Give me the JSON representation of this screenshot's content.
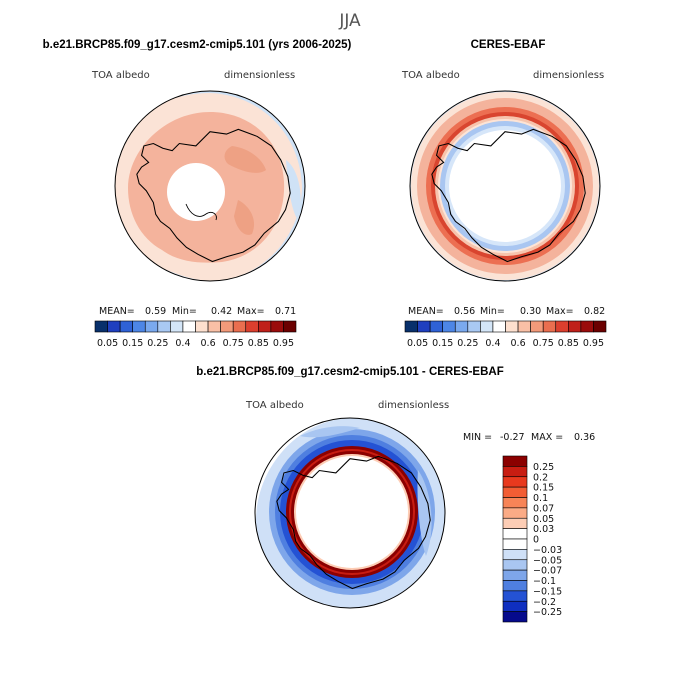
{
  "figure": {
    "season": "JJA",
    "colors": {
      "bluefill": "#cfe2f6",
      "palefill": "#fbe3d6",
      "lightred": "#f3b39d",
      "midred": "#e8674c",
      "darkred": "#a81c1c"
    }
  },
  "chart_data": [
    {
      "type": "heatmap",
      "projection": "south-polar-stereographic",
      "title": "b.e21.BRCP85.f09_g17.cesm2-cmip5.101 (yrs 2006-2025)",
      "variable_label": "TOA albedo",
      "units_label": "dimensionless",
      "stats": {
        "mean_label": "MEAN=",
        "mean": "0.59",
        "min_label": "Min=",
        "min": "0.42",
        "max_label": "Max=",
        "max": "0.71"
      },
      "colorbar": {
        "orientation": "horizontal",
        "colors": [
          "#08306b",
          "#1f3fbf",
          "#2f62d6",
          "#4d86e6",
          "#7aa9ee",
          "#a9c9f3",
          "#d4e6f8",
          "#ffffff",
          "#fde0cf",
          "#f9c0a6",
          "#f39a7a",
          "#ea6e4f",
          "#dc3f2e",
          "#c0201a",
          "#9a0c0c",
          "#6b0000"
        ],
        "tick_labels": [
          "0.05",
          "0.15",
          "0.25",
          "0.4",
          "0.6",
          "0.75",
          "0.85",
          "0.95"
        ]
      }
    },
    {
      "type": "heatmap",
      "projection": "south-polar-stereographic",
      "title": "CERES-EBAF",
      "variable_label": "TOA albedo",
      "units_label": "dimensionless",
      "stats": {
        "mean_label": "MEAN=",
        "mean": "0.56",
        "min_label": "Min=",
        "min": "0.30",
        "max_label": "Max=",
        "max": "0.82"
      },
      "colorbar": {
        "orientation": "horizontal",
        "colors": [
          "#08306b",
          "#1f3fbf",
          "#2f62d6",
          "#4d86e6",
          "#7aa9ee",
          "#a9c9f3",
          "#d4e6f8",
          "#ffffff",
          "#fde0cf",
          "#f9c0a6",
          "#f39a7a",
          "#ea6e4f",
          "#dc3f2e",
          "#c0201a",
          "#9a0c0c",
          "#6b0000"
        ],
        "tick_labels": [
          "0.05",
          "0.15",
          "0.25",
          "0.4",
          "0.6",
          "0.75",
          "0.85",
          "0.95"
        ]
      }
    },
    {
      "type": "heatmap",
      "projection": "south-polar-stereographic",
      "title": "b.e21.BRCP85.f09_g17.cesm2-cmip5.101 - CERES-EBAF",
      "variable_label": "TOA albedo",
      "units_label": "dimensionless",
      "stats": {
        "min_label": "MIN =",
        "min": "-0.27",
        "max_label": "MAX =",
        "max": "0.36"
      },
      "colorbar": {
        "orientation": "vertical",
        "colors": [
          "#8b0000",
          "#c81d12",
          "#e8391e",
          "#f25d34",
          "#f78457",
          "#fbab86",
          "#fdcdb5",
          "#ffffff",
          "#ffffff",
          "#cfe0f7",
          "#a9c6f1",
          "#7ea6ea",
          "#4f7fe0",
          "#2452d4",
          "#0f2fc0",
          "#050a8c"
        ],
        "tick_labels": [
          "0.25",
          "0.2",
          "0.15",
          "0.1",
          "0.07",
          "0.05",
          "0.03",
          "0",
          "−0.03",
          "−0.05",
          "−0.07",
          "−0.1",
          "−0.15",
          "−0.2",
          "−0.25"
        ]
      }
    }
  ]
}
